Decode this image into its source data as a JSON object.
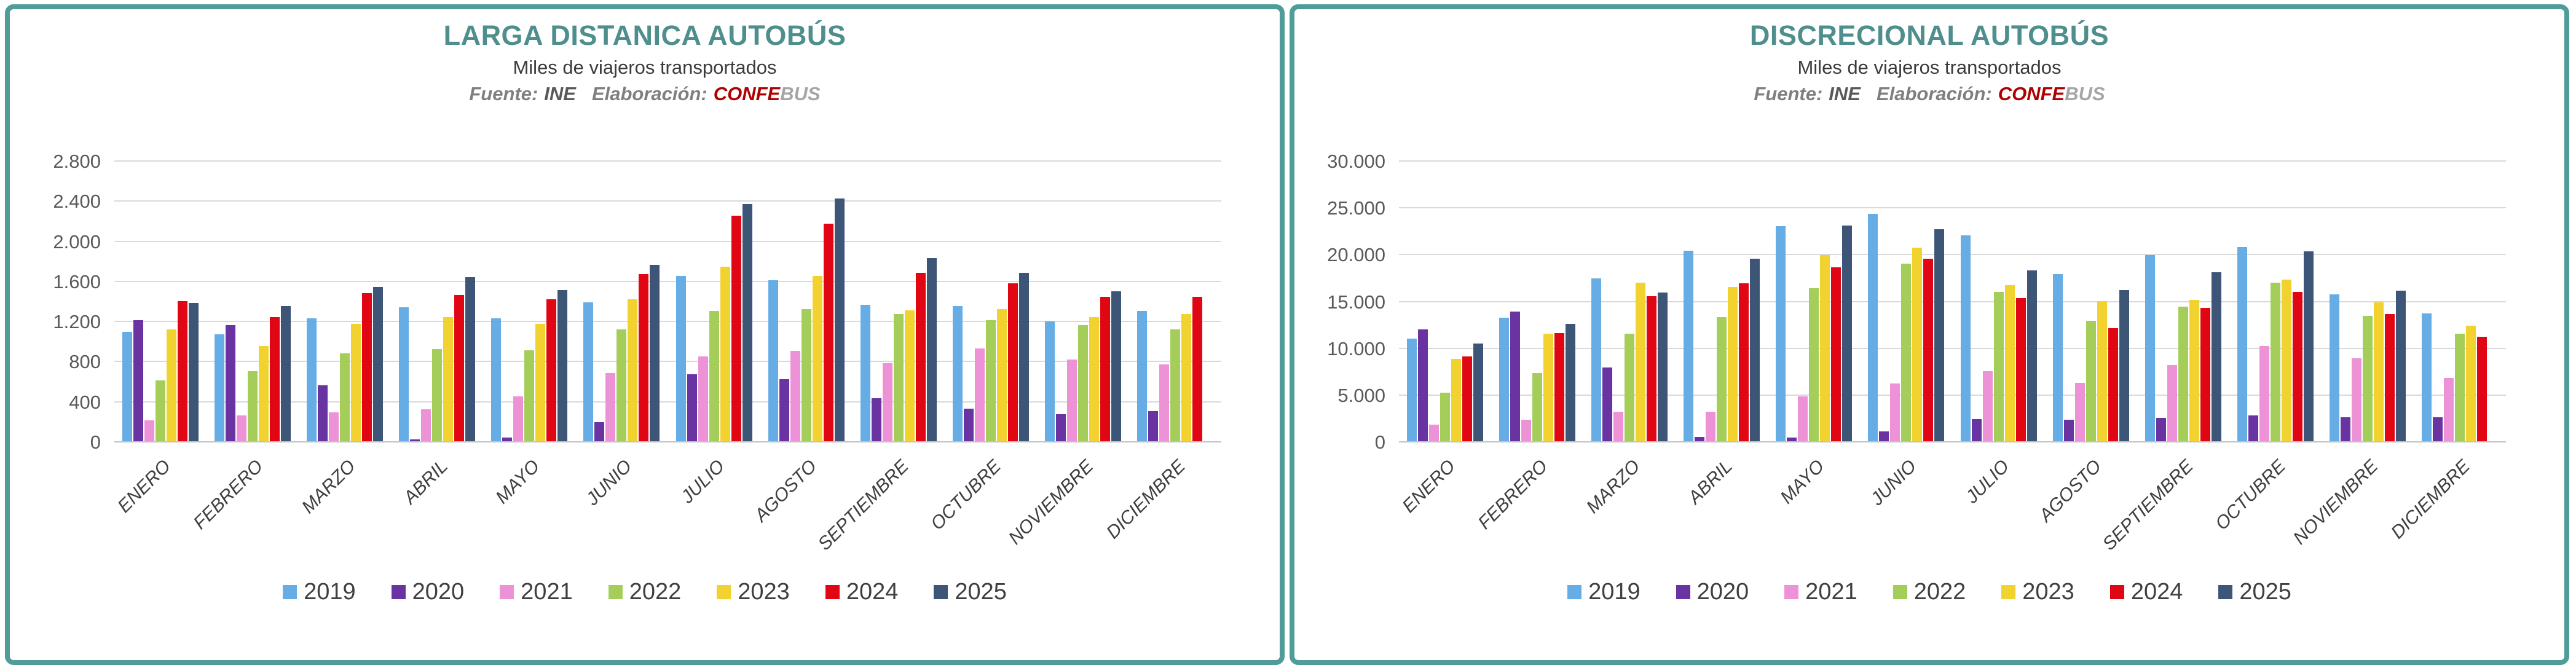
{
  "page": {
    "frame_color": "#4F9C98",
    "title_color": "#4E8F8D",
    "background": "#FFFFFF"
  },
  "chart_data": [
    {
      "type": "bar",
      "title": "LARGA DISTANICA AUTOBÚS",
      "subtitle": "Miles de viajeros transportados",
      "source": {
        "fuente_label": "Fuente:",
        "fuente_value": "INE",
        "elaboracion_label": "Elaboración:",
        "brand_red": "CONFE",
        "brand_gray": "BUS"
      },
      "ylabel": "",
      "xlabel": "",
      "ylim": [
        0,
        2800
      ],
      "ytick_step": 400,
      "ytick_labels": [
        "0",
        "400",
        "800",
        "1.200",
        "1.600",
        "2.000",
        "2.400",
        "2.800"
      ],
      "grid": true,
      "legend_position": "bottom",
      "categories": [
        "ENERO",
        "FEBRERO",
        "MARZO",
        "ABRIL",
        "MAYO",
        "JUNIO",
        "JULIO",
        "AGOSTO",
        "SEPTIEMBRE",
        "OCTUBRE",
        "NOVIEMBRE",
        "DICIEMBRE"
      ],
      "series": [
        {
          "name": "2019",
          "color": "#66ADE5",
          "values": [
            1100,
            1080,
            1240,
            1350,
            1240,
            1400,
            1660,
            1620,
            1370,
            1360,
            1210,
            1310
          ]
        },
        {
          "name": "2020",
          "color": "#6A33A2",
          "values": [
            1220,
            1170,
            570,
            30,
            50,
            200,
            680,
            630,
            440,
            340,
            280,
            310
          ]
        },
        {
          "name": "2021",
          "color": "#EE92D8",
          "values": [
            220,
            270,
            300,
            330,
            460,
            690,
            860,
            910,
            790,
            940,
            830,
            780
          ]
        },
        {
          "name": "2022",
          "color": "#A4CD5A",
          "values": [
            620,
            710,
            890,
            930,
            920,
            1130,
            1310,
            1330,
            1280,
            1220,
            1170,
            1130
          ]
        },
        {
          "name": "2023",
          "color": "#F2D22E",
          "values": [
            1130,
            960,
            1180,
            1250,
            1180,
            1430,
            1750,
            1660,
            1320,
            1330,
            1250,
            1280
          ]
        },
        {
          "name": "2024",
          "color": "#E00613",
          "values": [
            1410,
            1250,
            1490,
            1470,
            1430,
            1680,
            2260,
            2180,
            1690,
            1590,
            1450,
            1450
          ]
        },
        {
          "name": "2025",
          "color": "#3D5677",
          "values": [
            1390,
            1360,
            1550,
            1650,
            1520,
            1770,
            2380,
            2430,
            1840,
            1690,
            1510,
            null
          ]
        }
      ]
    },
    {
      "type": "bar",
      "title": "DISCRECIONAL AUTOBÚS",
      "subtitle": "Miles de viajeros transportados",
      "source": {
        "fuente_label": "Fuente:",
        "fuente_value": "INE",
        "elaboracion_label": "Elaboración:",
        "brand_red": "CONFE",
        "brand_gray": "BUS"
      },
      "ylabel": "",
      "xlabel": "",
      "ylim": [
        0,
        30000
      ],
      "ytick_step": 5000,
      "ytick_labels": [
        "0",
        "5.000",
        "10.000",
        "15.000",
        "20.000",
        "25.000",
        "30.000"
      ],
      "grid": true,
      "legend_position": "bottom",
      "categories": [
        "ENERO",
        "FEBRERO",
        "MARZO",
        "ABRIL",
        "MAYO",
        "JUNIO",
        "JULIO",
        "AGOSTO",
        "SEPTIEMBRE",
        "OCTUBRE",
        "NOVIEMBRE",
        "DICIEMBRE"
      ],
      "series": [
        {
          "name": "2019",
          "color": "#66ADE5",
          "values": [
            11100,
            13300,
            17500,
            20500,
            23100,
            24400,
            22100,
            18000,
            20000,
            20900,
            15800,
            13800
          ]
        },
        {
          "name": "2020",
          "color": "#6A33A2",
          "values": [
            12100,
            14000,
            8000,
            600,
            500,
            1200,
            2500,
            2400,
            2600,
            2900,
            2700,
            2700
          ]
        },
        {
          "name": "2021",
          "color": "#EE92D8",
          "values": [
            1900,
            2400,
            3300,
            3300,
            4900,
            6300,
            7600,
            6400,
            8300,
            10300,
            9000,
            6900
          ]
        },
        {
          "name": "2022",
          "color": "#A4CD5A",
          "values": [
            5300,
            7400,
            11600,
            13400,
            16500,
            19100,
            16100,
            13000,
            14500,
            17100,
            13500,
            11600
          ]
        },
        {
          "name": "2023",
          "color": "#F2D22E",
          "values": [
            8900,
            11600,
            17100,
            16600,
            20000,
            20800,
            16800,
            15100,
            15200,
            17400,
            15000,
            12500
          ]
        },
        {
          "name": "2024",
          "color": "#E00613",
          "values": [
            9200,
            11700,
            15600,
            17000,
            18700,
            19600,
            15400,
            12200,
            14400,
            16100,
            13700,
            11300
          ]
        },
        {
          "name": "2025",
          "color": "#3D5677",
          "values": [
            10600,
            12700,
            16000,
            19600,
            23200,
            22800,
            18400,
            16300,
            18200,
            20400,
            16200,
            null
          ]
        }
      ]
    }
  ]
}
